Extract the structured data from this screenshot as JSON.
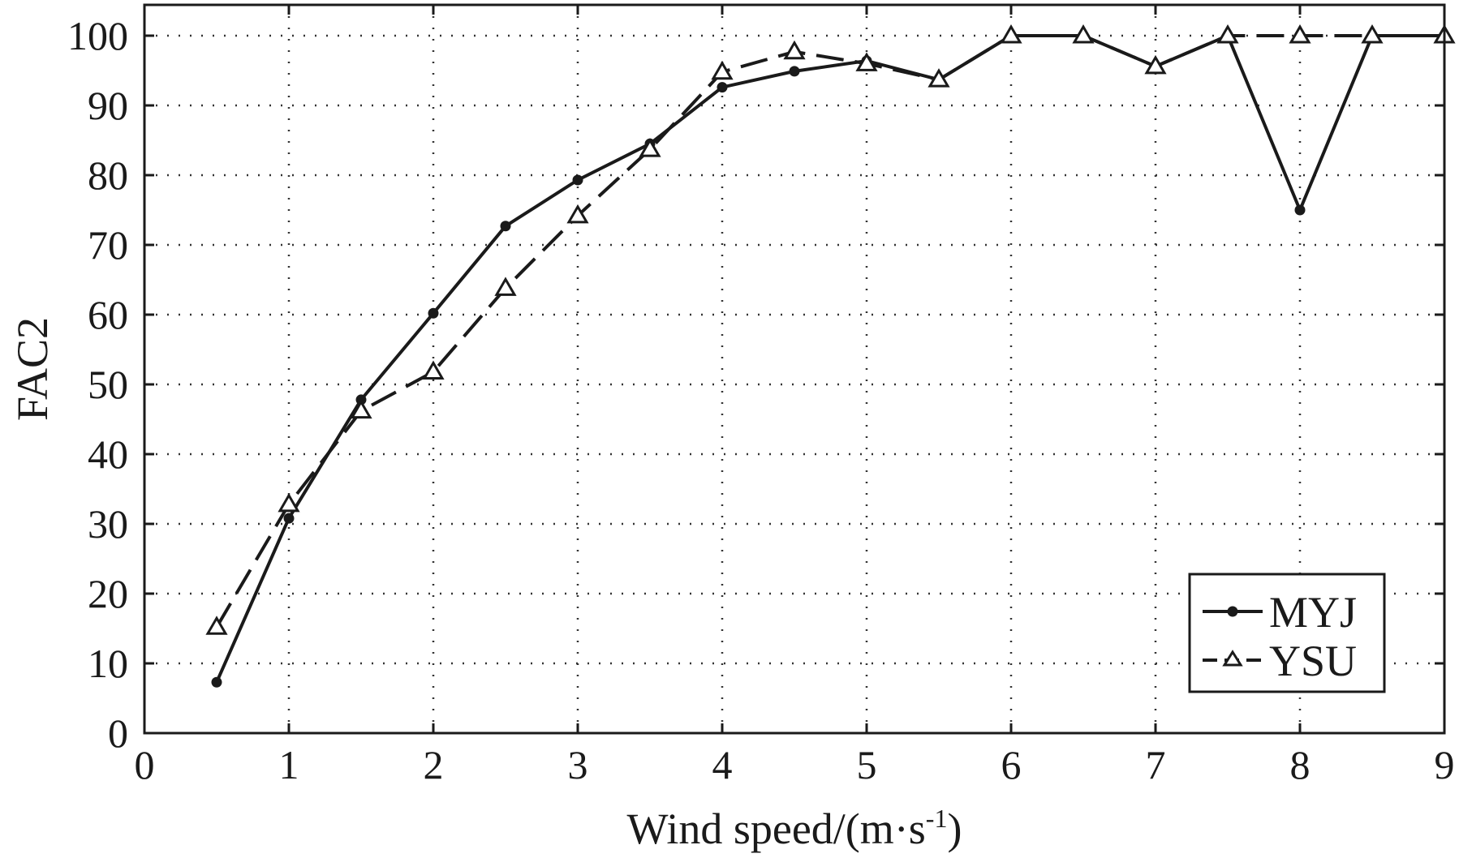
{
  "chart_data": {
    "type": "line",
    "title": "",
    "xlabel_main": "Wind speed/(m·s",
    "xlabel_sup": "-1",
    "xlabel_close": ")",
    "ylabel": "FAC2",
    "xlim": [
      0,
      9
    ],
    "ylim": [
      0,
      100
    ],
    "xticks": [
      0,
      1,
      2,
      3,
      4,
      5,
      6,
      7,
      8,
      9
    ],
    "yticks": [
      0,
      10,
      20,
      30,
      40,
      50,
      60,
      70,
      80,
      90,
      100
    ],
    "grid": true,
    "legend_position": "bottom-right",
    "series": [
      {
        "name": "MYJ",
        "line_style": "solid",
        "marker": "filled-circle",
        "color": "#1a1a1a",
        "x": [
          0.5,
          1,
          1.5,
          2,
          2.5,
          3,
          3.5,
          4,
          4.5,
          5,
          5.5,
          6,
          6.5,
          7,
          7.5,
          8,
          8.5,
          9
        ],
        "y": [
          7.3,
          30.8,
          47.8,
          60.2,
          72.7,
          79.3,
          84.5,
          92.6,
          94.9,
          96.4,
          93.7,
          100,
          100,
          95.6,
          100,
          75,
          100,
          100
        ]
      },
      {
        "name": "YSU",
        "line_style": "dashed",
        "marker": "open-triangle",
        "color": "#1a1a1a",
        "x": [
          0.5,
          1,
          1.5,
          2,
          2.5,
          3,
          3.5,
          4,
          4.5,
          5,
          5.5,
          6,
          6.5,
          7,
          7.5,
          8,
          8.5,
          9
        ],
        "y": [
          15.2,
          32.8,
          46.2,
          51.8,
          63.8,
          74.2,
          83.7,
          94.8,
          97.7,
          96.0,
          93.7,
          100,
          100,
          95.6,
          100,
          100,
          100,
          100
        ]
      }
    ]
  }
}
